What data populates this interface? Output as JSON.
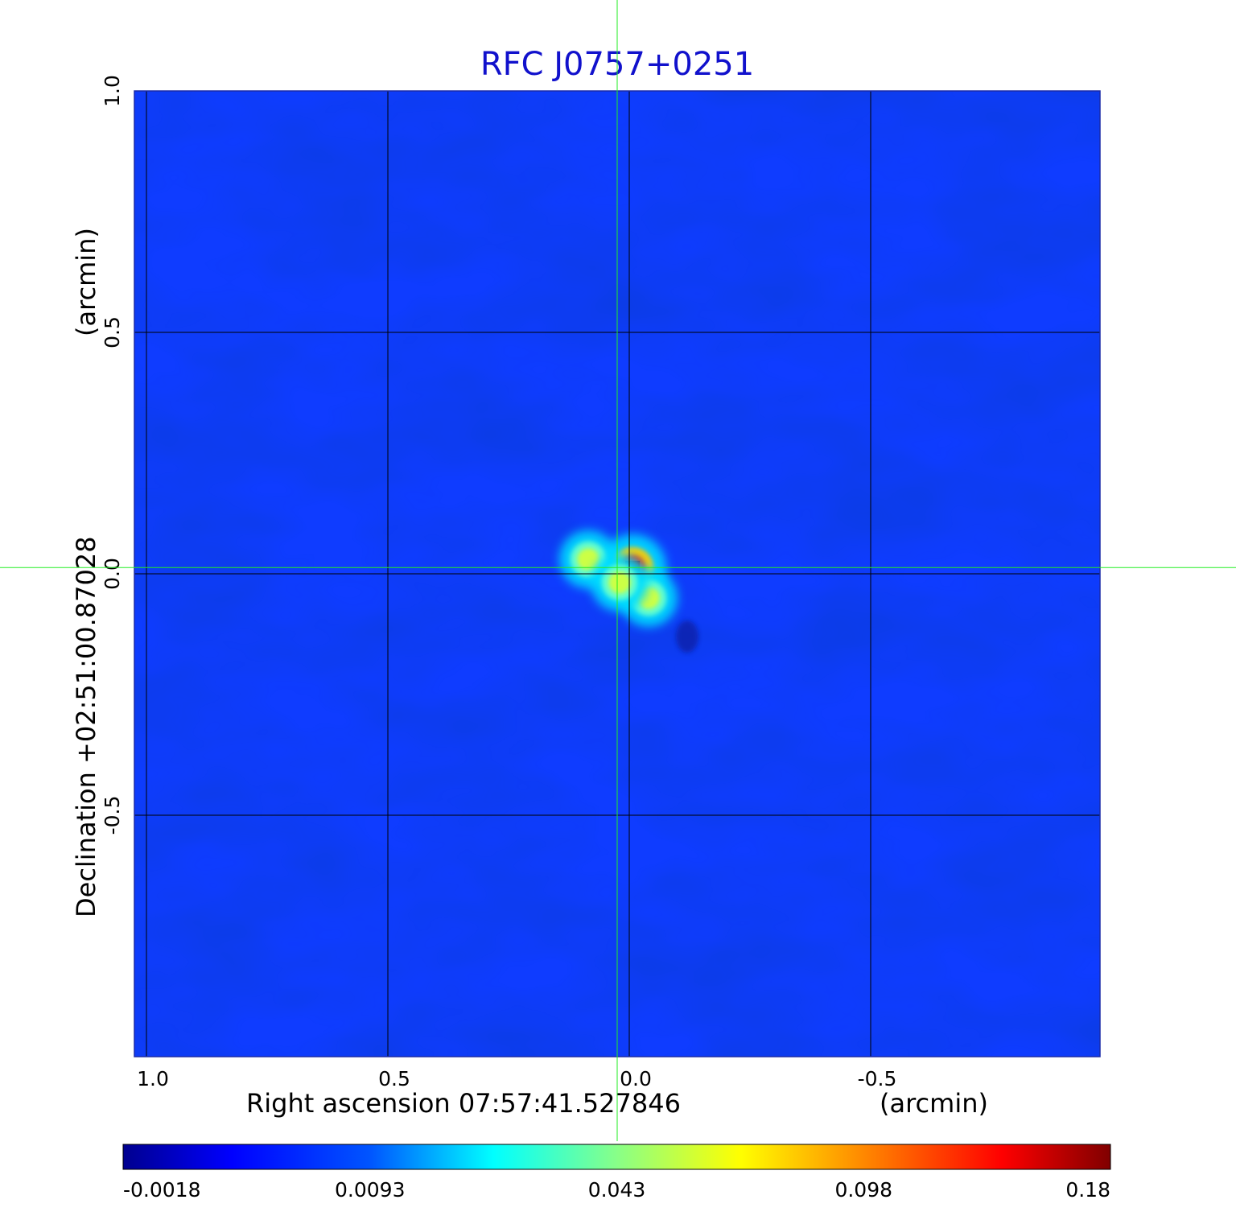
{
  "chart_data": {
    "type": "heatmap",
    "title": "RFC J0757+0251",
    "xlabel": "Right ascension  07:57:41.527846",
    "xunit": "(arcmin)",
    "ylabel": "Declination  +02:51:00.87028",
    "yunit": "(arcmin)",
    "x_ticks": [
      "1.0",
      "0.5",
      "0.0",
      "-0.5"
    ],
    "y_ticks": [
      "1.0",
      "0.5",
      "0.0",
      "-0.5"
    ],
    "x_tick_values": [
      1.0,
      0.5,
      0.0,
      -0.5
    ],
    "y_tick_values": [
      1.0,
      0.5,
      0.0,
      -0.5
    ],
    "xlim": [
      1.025,
      -0.975
    ],
    "ylim": [
      -1.0,
      1.0
    ],
    "grid": true,
    "crosshair": {
      "x": 0.025,
      "y": 0.013
    },
    "colorbar": {
      "ticks": [
        "-0.0018",
        "0.0093",
        "0.043",
        "0.098",
        "0.18"
      ],
      "colormap": "jet"
    },
    "sources": [
      {
        "x": -0.007,
        "y": 0.012,
        "peak": 0.18
      },
      {
        "x": -0.04,
        "y": -0.05,
        "peak": 0.062
      },
      {
        "x": 0.085,
        "y": 0.03,
        "peak": 0.058
      },
      {
        "x": 0.02,
        "y": -0.018,
        "peak": 0.07
      }
    ],
    "negative_features": [
      {
        "x": -0.12,
        "y": -0.13,
        "depth": -0.0018
      }
    ]
  },
  "colors": {
    "background_field": "#0f3cff",
    "crosshair": "#22ee22",
    "title": "#1111cc",
    "grid": "#000000"
  }
}
